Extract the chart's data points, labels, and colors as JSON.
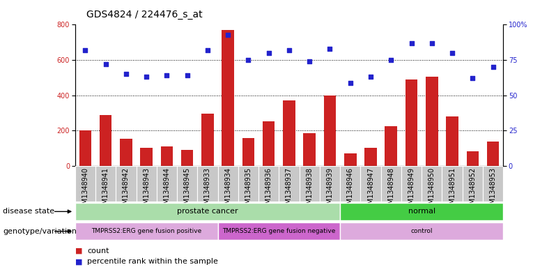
{
  "title": "GDS4824 / 224476_s_at",
  "samples": [
    "GSM1348940",
    "GSM1348941",
    "GSM1348942",
    "GSM1348943",
    "GSM1348944",
    "GSM1348945",
    "GSM1348933",
    "GSM1348934",
    "GSM1348935",
    "GSM1348936",
    "GSM1348937",
    "GSM1348938",
    "GSM1348939",
    "GSM1348946",
    "GSM1348947",
    "GSM1348948",
    "GSM1348949",
    "GSM1348950",
    "GSM1348951",
    "GSM1348952",
    "GSM1348953"
  ],
  "counts": [
    200,
    290,
    155,
    105,
    110,
    90,
    295,
    770,
    160,
    255,
    370,
    185,
    400,
    70,
    105,
    225,
    490,
    505,
    280,
    85,
    140
  ],
  "percentiles": [
    82,
    72,
    65,
    63,
    64,
    64,
    82,
    93,
    75,
    80,
    82,
    74,
    83,
    59,
    63,
    75,
    87,
    87,
    80,
    62,
    70
  ],
  "bar_color": "#cc2222",
  "dot_color": "#2222cc",
  "left_ylim": [
    0,
    800
  ],
  "right_ylim": [
    0,
    100
  ],
  "left_yticks": [
    0,
    200,
    400,
    600,
    800
  ],
  "right_yticks": [
    0,
    25,
    50,
    75,
    100
  ],
  "right_yticklabels": [
    "0",
    "25",
    "50",
    "75",
    "100%"
  ],
  "grid_values": [
    200,
    400,
    600
  ],
  "disease_state_groups": [
    {
      "label": "prostate cancer",
      "start": 0,
      "end": 13,
      "color": "#aaddaa"
    },
    {
      "label": "normal",
      "start": 13,
      "end": 21,
      "color": "#44cc44"
    }
  ],
  "genotype_groups": [
    {
      "label": "TMPRSS2:ERG gene fusion positive",
      "start": 0,
      "end": 7,
      "color": "#ddaadd"
    },
    {
      "label": "TMPRSS2:ERG gene fusion negative",
      "start": 7,
      "end": 13,
      "color": "#cc66cc"
    },
    {
      "label": "control",
      "start": 13,
      "end": 21,
      "color": "#ddaadd"
    }
  ],
  "legend_items": [
    {
      "color": "#cc2222",
      "label": "count"
    },
    {
      "color": "#2222cc",
      "label": "percentile rank within the sample"
    }
  ],
  "disease_label": "disease state",
  "genotype_label": "genotype/variation",
  "title_fontsize": 10,
  "tick_fontsize": 7,
  "label_fontsize": 8,
  "annotation_fontsize": 8,
  "genotype_fontsize": 6.5,
  "background_color": "#ffffff"
}
